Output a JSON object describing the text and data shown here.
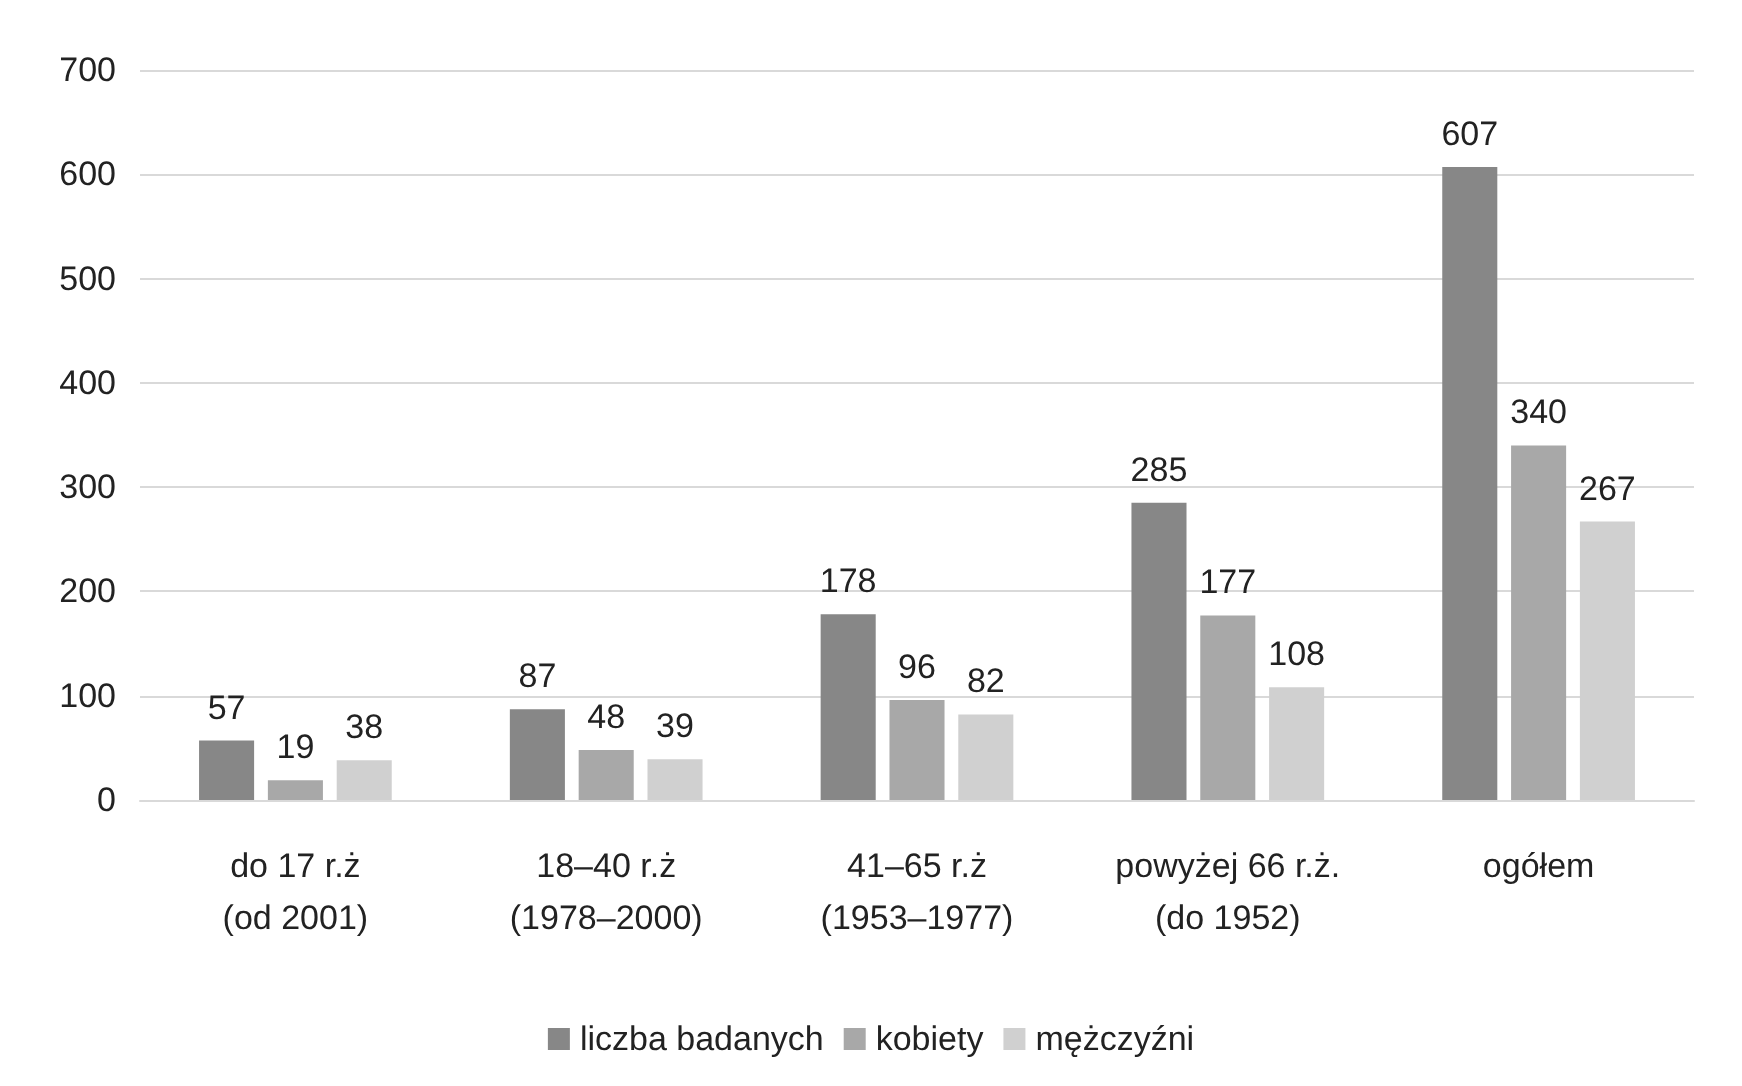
{
  "chart_data": {
    "type": "bar",
    "categories": [
      "do 17 r.ż\n(od 2001)",
      "18–40 r.ż\n(1978–2000)",
      "41–65 r.ż\n(1953–1977)",
      "powyżej 66 r.ż.\n(do 1952)",
      "ogółem"
    ],
    "series": [
      {
        "name": "liczba badanych",
        "color": "#878787",
        "values": [
          57,
          87,
          178,
          285,
          607
        ]
      },
      {
        "name": "kobiety",
        "color": "#a8a8a8",
        "values": [
          19,
          48,
          96,
          177,
          340
        ]
      },
      {
        "name": "mężczyźni",
        "color": "#d0d0d0",
        "values": [
          38,
          39,
          82,
          108,
          267
        ]
      }
    ],
    "ylim": [
      0,
      700
    ],
    "yticks": [
      0,
      100,
      200,
      300,
      400,
      500,
      600,
      700
    ],
    "grid": "y",
    "legend": "bottom",
    "data_labels": true
  }
}
